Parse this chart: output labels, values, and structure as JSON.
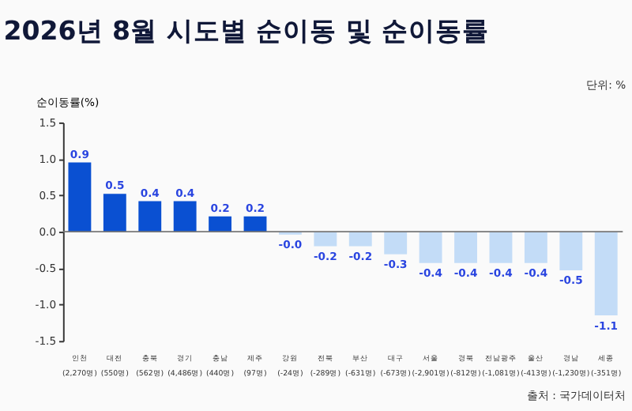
{
  "chart_data": {
    "type": "bar",
    "title": "2026년 8월 시도별 순이동 및 순이동률",
    "ylabel": "순이동률(%)",
    "categories": [
      "인천 (2,270명)",
      "대전 (550명)",
      "충북 (562명)",
      "경기 (4,486명)",
      "충남 (440명)",
      "제주 (97명)",
      "강원 (-24명)",
      "전북 (-289명)",
      "부산 (-631명)",
      "대구 (-673명)",
      "서울 (-2,901명)",
      "경북 (-812명)",
      "전남광주 (-1,081명)",
      "울산 (-413명)",
      "경남 (-1,230명)",
      "세종 (-351명)"
    ],
    "values": [
      0.95,
      0.52,
      0.42,
      0.42,
      0.21,
      0.21,
      -0.04,
      -0.2,
      -0.2,
      -0.31,
      -0.43,
      -0.43,
      -0.43,
      -0.43,
      -0.53,
      -1.15
    ],
    "value_labels": [
      "0.9",
      "0.5",
      "0.4",
      "0.4",
      "0.2",
      "0.2",
      "-0.0",
      "-0.2",
      "-0.2",
      "-0.3",
      "-0.4",
      "-0.4",
      "-0.4",
      "-0.4",
      "-0.5",
      "-1.1"
    ],
    "colors": [
      "#0a50d2",
      "#0a50d2",
      "#0a50d2",
      "#0a50d2",
      "#0a50d2",
      "#0a50d2",
      "#c3dcf7",
      "#c3dcf7",
      "#c3dcf7",
      "#c3dcf7",
      "#c3dcf7",
      "#c3dcf7",
      "#c3dcf7",
      "#c3dcf7",
      "#c3dcf7",
      "#c3dcf7"
    ],
    "ylim": [
      -1.5,
      1.5
    ],
    "yticks": [
      {
        "value": -1.5,
        "label": "-1.5"
      },
      {
        "value": -1.0,
        "label": "-1.0"
      },
      {
        "value": -0.5,
        "label": "-0.5"
      },
      {
        "value": 0,
        "label": "0.0"
      },
      {
        "value": 0.5,
        "label": "0.5"
      },
      {
        "value": 1.0,
        "label": "1.0"
      },
      {
        "value": 1.5,
        "label": "1.5"
      }
    ],
    "ref_lines": [
      {
        "axis": "y",
        "value": 0,
        "color": "#777777"
      }
    ],
    "grid": false,
    "annotations": [
      "단위: %",
      "출처 : 국가데이터처"
    ]
  }
}
